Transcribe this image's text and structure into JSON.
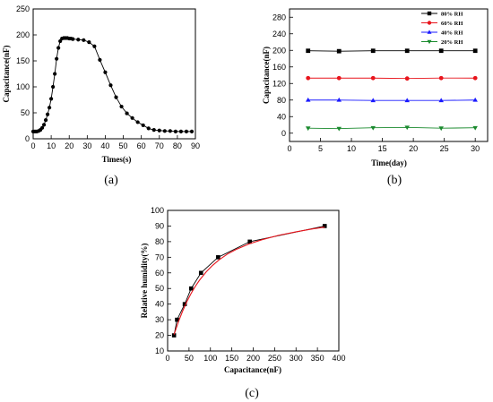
{
  "chart_data": [
    {
      "id": "a",
      "type": "line",
      "panel_label": "(a)",
      "xlabel": "Times(s)",
      "ylabel": "Capacitance(nF)",
      "xlim": [
        0,
        90
      ],
      "ylim": [
        0,
        250
      ],
      "xticks": [
        0,
        10,
        20,
        30,
        40,
        50,
        60,
        70,
        80,
        90
      ],
      "yticks": [
        0,
        50,
        100,
        150,
        200,
        250
      ],
      "series": [
        {
          "color": "#000000",
          "marker": "circle",
          "x": [
            0,
            1,
            2,
            3,
            4,
            5,
            6,
            7,
            8,
            9,
            10,
            11,
            12,
            13,
            14,
            15,
            16,
            17,
            18,
            19,
            20,
            21,
            22,
            25,
            28,
            31,
            34,
            37,
            40,
            43,
            46,
            49,
            52,
            55,
            58,
            61,
            64,
            67,
            70,
            73,
            76,
            79,
            82,
            85,
            88
          ],
          "y": [
            14,
            14,
            14,
            15,
            17,
            21,
            27,
            36,
            47,
            60,
            77,
            100,
            125,
            154,
            175,
            188,
            193,
            194,
            194,
            194,
            193,
            193,
            192,
            191,
            190,
            186,
            178,
            152,
            128,
            103,
            80,
            62,
            49,
            40,
            32,
            26,
            20,
            17,
            16,
            15,
            15,
            14,
            14,
            14,
            14
          ]
        }
      ]
    },
    {
      "id": "b",
      "type": "line",
      "panel_label": "(b)",
      "xlabel": "Time(day)",
      "ylabel": "Capacitance(nF)",
      "xlim": [
        0,
        32
      ],
      "ylim": [
        -20,
        300
      ],
      "xticks": [
        0,
        5,
        10,
        15,
        20,
        25,
        30
      ],
      "yticks": [
        0,
        40,
        80,
        120,
        160,
        200,
        240,
        280
      ],
      "legend_position": "top-right",
      "x": [
        3,
        8,
        13.5,
        19,
        24.5,
        30
      ],
      "series": [
        {
          "name": "80% RH",
          "color": "#000000",
          "marker": "square",
          "y": [
            199,
            198,
            199,
            199,
            199,
            199
          ]
        },
        {
          "name": "60% RH",
          "color": "#e8141c",
          "marker": "circle",
          "y": [
            133,
            133,
            133,
            132,
            133,
            133
          ]
        },
        {
          "name": "40% RH",
          "color": "#1a1aff",
          "marker": "triangle-up",
          "y": [
            80,
            80,
            79,
            79,
            79,
            80
          ]
        },
        {
          "name": "20% RH",
          "color": "#1a8a2e",
          "marker": "triangle-down",
          "y": [
            12,
            11,
            13,
            14,
            12,
            13
          ]
        }
      ]
    },
    {
      "id": "c",
      "type": "scatter",
      "panel_label": "(c)",
      "xlabel": "Capacitance(nF)",
      "ylabel": "Relative humidity(%)",
      "xlim": [
        0,
        400
      ],
      "ylim": [
        10,
        100
      ],
      "xticks": [
        0,
        50,
        100,
        150,
        200,
        250,
        300,
        350,
        400
      ],
      "yticks": [
        10,
        20,
        30,
        40,
        50,
        60,
        70,
        80,
        90,
        100
      ],
      "series": [
        {
          "color": "#000000",
          "marker": "square",
          "connect": true,
          "x": [
            15,
            22,
            40,
            55,
            78,
            118,
            192,
            367
          ],
          "y": [
            20,
            30,
            40,
            50,
            60,
            70,
            80,
            90
          ]
        },
        {
          "color": "#e8141c",
          "marker": "none",
          "connect": true,
          "fit": true,
          "x": [
            15,
            25,
            35,
            45,
            55,
            65,
            75,
            90,
            105,
            120,
            140,
            160,
            190,
            220,
            260,
            300,
            340,
            367
          ],
          "y": [
            20.5,
            28.5,
            35.5,
            41.6,
            46.9,
            51.5,
            55.5,
            60.6,
            64.8,
            68.3,
            72.1,
            75.0,
            78.5,
            81.2,
            84.1,
            86.3,
            88.2,
            89.3
          ]
        }
      ]
    }
  ]
}
